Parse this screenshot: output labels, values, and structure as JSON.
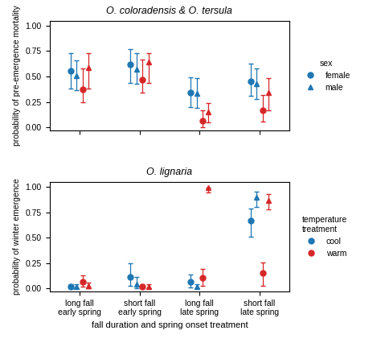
{
  "chart_data": [
    {
      "type": "scatter",
      "title": "O. coloradensis & O. tersula",
      "y_label": "probability of pre-emergence mortality",
      "categories": [
        "long fall\nearly spring",
        "short fall\nearly spring",
        "long fall\nlate spring",
        "short fall\nlate spring"
      ],
      "ylim": [
        -0.03,
        1.05
      ],
      "yticks": [
        {
          "value": 0.0,
          "label": "0.00"
        },
        {
          "value": 0.25,
          "label": "0.25"
        },
        {
          "value": 0.5,
          "label": "0.50"
        },
        {
          "value": 0.75,
          "label": "0.75"
        },
        {
          "value": 1.0,
          "label": "1.00"
        }
      ],
      "tick_labels": "y",
      "legend_title": "sex",
      "legend_entries": [
        "female",
        "male"
      ],
      "series": [
        {
          "sex": "female",
          "temperature": "cool",
          "color": "#1f77b4",
          "marker": "circle",
          "values": [
            0.555,
            0.615,
            0.34,
            0.455
          ],
          "error_low": [
            0.175,
            0.175,
            0.14,
            0.145
          ],
          "error_high": [
            0.175,
            0.155,
            0.155,
            0.175
          ]
        },
        {
          "sex": "male",
          "temperature": "cool",
          "color": "#1f77b4",
          "marker": "triangle",
          "values": [
            0.505,
            0.575,
            0.33,
            0.425
          ],
          "error_low": [
            0.14,
            0.145,
            0.14,
            0.145
          ],
          "error_high": [
            0.155,
            0.155,
            0.155,
            0.155
          ]
        },
        {
          "sex": "female",
          "temperature": "warm",
          "color": "#d62728",
          "marker": "circle",
          "values": [
            0.37,
            0.47,
            0.065,
            0.17
          ],
          "error_low": [
            0.125,
            0.125,
            0.065,
            0.11
          ],
          "error_high": [
            0.21,
            0.195,
            0.1,
            0.145
          ]
        },
        {
          "sex": "male",
          "temperature": "warm",
          "color": "#d62728",
          "marker": "triangle",
          "values": [
            0.585,
            0.64,
            0.155,
            0.345
          ],
          "error_low": [
            0.205,
            0.205,
            0.105,
            0.18
          ],
          "error_high": [
            0.145,
            0.09,
            0.085,
            0.14
          ]
        }
      ]
    },
    {
      "type": "scatter",
      "title": "O. lignaria",
      "y_label": "probability of winter emergence",
      "x_label": "fall duration and spring onset treatment",
      "categories": [
        "long fall\nearly spring",
        "short fall\nearly spring",
        "long fall\nlate spring",
        "short fall\nlate spring"
      ],
      "ylim": [
        -0.03,
        1.05
      ],
      "yticks": [
        {
          "value": 0.0,
          "label": "0.00"
        },
        {
          "value": 0.25,
          "label": "0.25"
        },
        {
          "value": 0.5,
          "label": "0.50"
        },
        {
          "value": 0.75,
          "label": "0.75"
        },
        {
          "value": 1.0,
          "label": "1.00"
        }
      ],
      "legend_title": "temperature\ntreatment",
      "legend_entries": [
        "cool",
        "warm"
      ],
      "series": [
        {
          "sex": "female",
          "temperature": "cool",
          "color": "#1f77b4",
          "marker": "circle",
          "values": [
            0.02,
            0.115,
            0.065,
            0.665
          ],
          "error_low": [
            0.018,
            0.09,
            0.055,
            0.155
          ],
          "error_high": [
            0.025,
            0.13,
            0.075,
            0.125
          ]
        },
        {
          "sex": "male",
          "temperature": "cool",
          "color": "#1f77b4",
          "marker": "triangle",
          "values": [
            0.02,
            0.045,
            0.02,
            0.895
          ],
          "error_low": [
            0.018,
            0.04,
            0.018,
            0.09
          ],
          "error_high": [
            0.025,
            0.065,
            0.025,
            0.06
          ]
        },
        {
          "sex": "female",
          "temperature": "warm",
          "color": "#d62728",
          "marker": "circle",
          "values": [
            0.065,
            0.02,
            0.105,
            0.155
          ],
          "error_low": [
            0.05,
            0.018,
            0.075,
            0.125
          ],
          "error_high": [
            0.065,
            0.025,
            0.09,
            0.1
          ]
        },
        {
          "sex": "male",
          "temperature": "warm",
          "color": "#d62728",
          "marker": "triangle",
          "values": [
            0.025,
            0.02,
            0.99,
            0.865
          ],
          "error_low": [
            0.023,
            0.018,
            0.045,
            0.09
          ],
          "error_high": [
            0.03,
            0.025,
            0.005,
            0.065
          ]
        }
      ]
    }
  ]
}
